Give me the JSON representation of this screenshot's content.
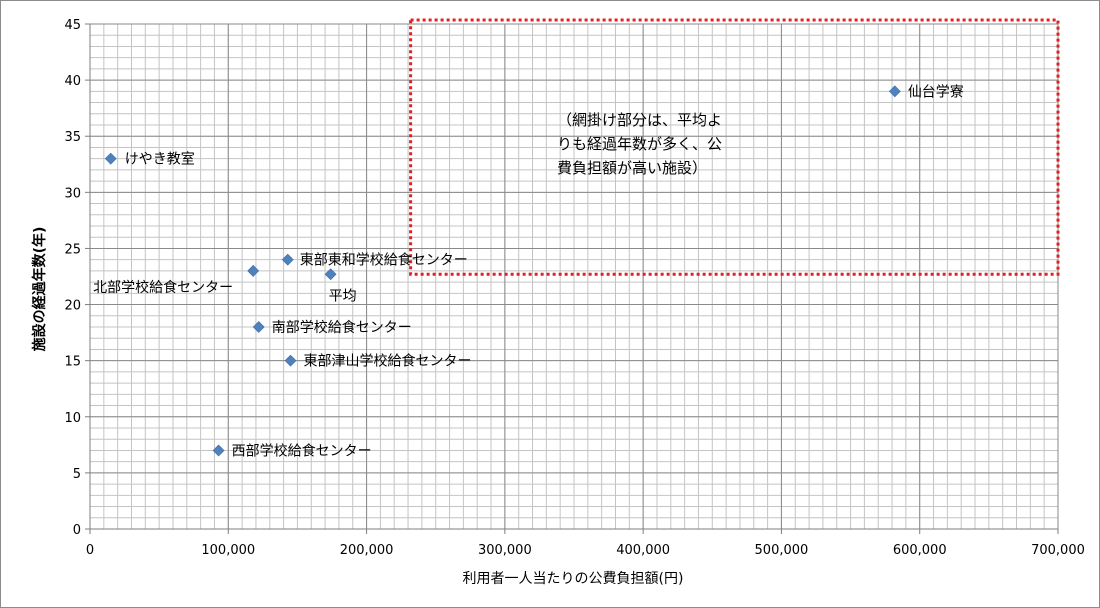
{
  "chart_data": {
    "type": "scatter",
    "xlabel": "利用者一人当たりの公費負担額(円)",
    "ylabel": "施設の経過年数(年)",
    "xlim": [
      0,
      700000
    ],
    "ylim": [
      0,
      45
    ],
    "x_ticks": [
      "0",
      "100,000",
      "200,000",
      "300,000",
      "400,000",
      "500,000",
      "600,000",
      "700,000"
    ],
    "y_ticks": [
      "0",
      "5",
      "10",
      "15",
      "20",
      "25",
      "30",
      "35",
      "40",
      "45"
    ],
    "grid": true,
    "marker_color": "#4f81bd",
    "highlight_color": "#e02020",
    "points": [
      {
        "label": "けやき教室",
        "x": 15000,
        "y": 33
      },
      {
        "label": "北部学校給食センター",
        "x": 118000,
        "y": 23
      },
      {
        "label": "東部東和学校給食センター",
        "x": 143000,
        "y": 24
      },
      {
        "label": "平均",
        "x": 174000,
        "y": 22.7
      },
      {
        "label": "南部学校給食センター",
        "x": 122000,
        "y": 18
      },
      {
        "label": "東部津山学校給食センター",
        "x": 145000,
        "y": 15
      },
      {
        "label": "西部学校給食センター",
        "x": 93000,
        "y": 7
      },
      {
        "label": "仙台学寮",
        "x": 582000,
        "y": 39
      }
    ],
    "highlight_region": {
      "x": [
        174000,
        700000
      ],
      "y": [
        22.7,
        45
      ]
    },
    "annotation_lines": [
      "（網掛け部分は、平均よ",
      "りも経過年数が多く、公",
      "費負担額が高い施設）"
    ]
  }
}
